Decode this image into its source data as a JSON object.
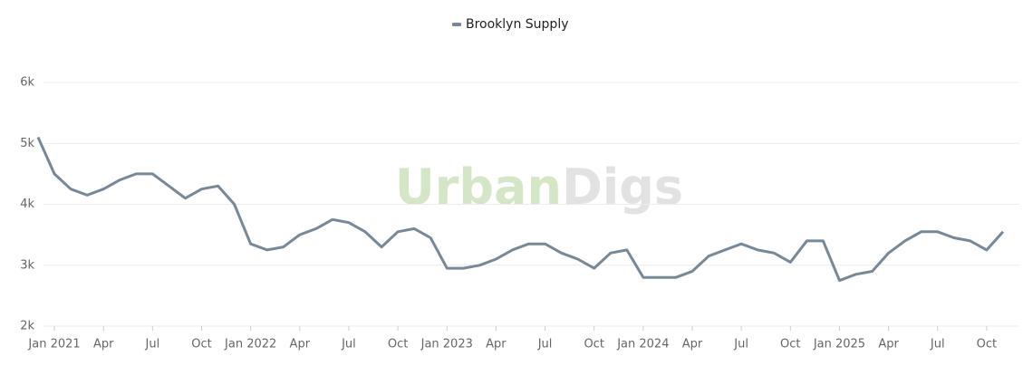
{
  "chart_data": {
    "type": "line",
    "series": [
      {
        "name": "Brooklyn Supply",
        "color": "#778899",
        "values": [
          5100,
          4500,
          4250,
          4150,
          4250,
          4400,
          4500,
          4500,
          4300,
          4100,
          4250,
          4300,
          4000,
          3350,
          3250,
          3300,
          3500,
          3600,
          3750,
          3700,
          3550,
          3300,
          3550,
          3600,
          3450,
          2950,
          2950,
          3000,
          3100,
          3250,
          3350,
          3350,
          3200,
          3100,
          2950,
          3200,
          3250,
          2800,
          2800,
          2800,
          2900,
          3150,
          3250,
          3350,
          3250,
          3200,
          3050,
          3400,
          3400,
          2750,
          2850,
          2900,
          3200,
          3400,
          3550,
          3550,
          3450,
          3400,
          3250,
          3550
        ]
      }
    ],
    "x": [
      "2020-12",
      "2021-01",
      "2021-02",
      "2021-03",
      "2021-04",
      "2021-05",
      "2021-06",
      "2021-07",
      "2021-08",
      "2021-09",
      "2021-10",
      "2021-11",
      "2021-12",
      "2022-01",
      "2022-02",
      "2022-03",
      "2022-04",
      "2022-05",
      "2022-06",
      "2022-07",
      "2022-08",
      "2022-09",
      "2022-10",
      "2022-11",
      "2022-12",
      "2023-01",
      "2023-02",
      "2023-03",
      "2023-04",
      "2023-05",
      "2023-06",
      "2023-07",
      "2023-08",
      "2023-09",
      "2023-10",
      "2023-11",
      "2023-12",
      "2024-01",
      "2024-02",
      "2024-03",
      "2024-04",
      "2024-05",
      "2024-06",
      "2024-07",
      "2024-08",
      "2024-09",
      "2024-10",
      "2024-11",
      "2024-12",
      "2025-01",
      "2025-02",
      "2025-03",
      "2025-04",
      "2025-05",
      "2025-06",
      "2025-07",
      "2025-08",
      "2025-09",
      "2025-10",
      "2025-11"
    ],
    "xlim": [
      "2020-12",
      "2025-11"
    ],
    "xticks": [
      {
        "value": "2021-01",
        "label": "Jan 2021"
      },
      {
        "value": "2021-04",
        "label": "Apr"
      },
      {
        "value": "2021-07",
        "label": "Jul"
      },
      {
        "value": "2021-10",
        "label": "Oct"
      },
      {
        "value": "2022-01",
        "label": "Jan 2022"
      },
      {
        "value": "2022-04",
        "label": "Apr"
      },
      {
        "value": "2022-07",
        "label": "Jul"
      },
      {
        "value": "2022-10",
        "label": "Oct"
      },
      {
        "value": "2023-01",
        "label": "Jan 2023"
      },
      {
        "value": "2023-04",
        "label": "Apr"
      },
      {
        "value": "2023-07",
        "label": "Jul"
      },
      {
        "value": "2023-10",
        "label": "Oct"
      },
      {
        "value": "2024-01",
        "label": "Jan 2024"
      },
      {
        "value": "2024-04",
        "label": "Apr"
      },
      {
        "value": "2024-07",
        "label": "Jul"
      },
      {
        "value": "2024-10",
        "label": "Oct"
      },
      {
        "value": "2025-01",
        "label": "Jan 2025"
      },
      {
        "value": "2025-04",
        "label": "Apr"
      },
      {
        "value": "2025-07",
        "label": "Jul"
      },
      {
        "value": "2025-10",
        "label": "Oct"
      }
    ],
    "ylim": [
      2000,
      6000
    ],
    "yticks": [
      {
        "value": 2000,
        "label": "2k"
      },
      {
        "value": 3000,
        "label": "3k"
      },
      {
        "value": 4000,
        "label": "4k"
      },
      {
        "value": 5000,
        "label": "5k"
      },
      {
        "value": 6000,
        "label": "6k"
      }
    ],
    "grid": true,
    "legend": "top",
    "watermark": [
      {
        "text": "Urban",
        "color": "#d3e6c6"
      },
      {
        "text": "Digs",
        "color": "#e2e2e2"
      }
    ]
  }
}
